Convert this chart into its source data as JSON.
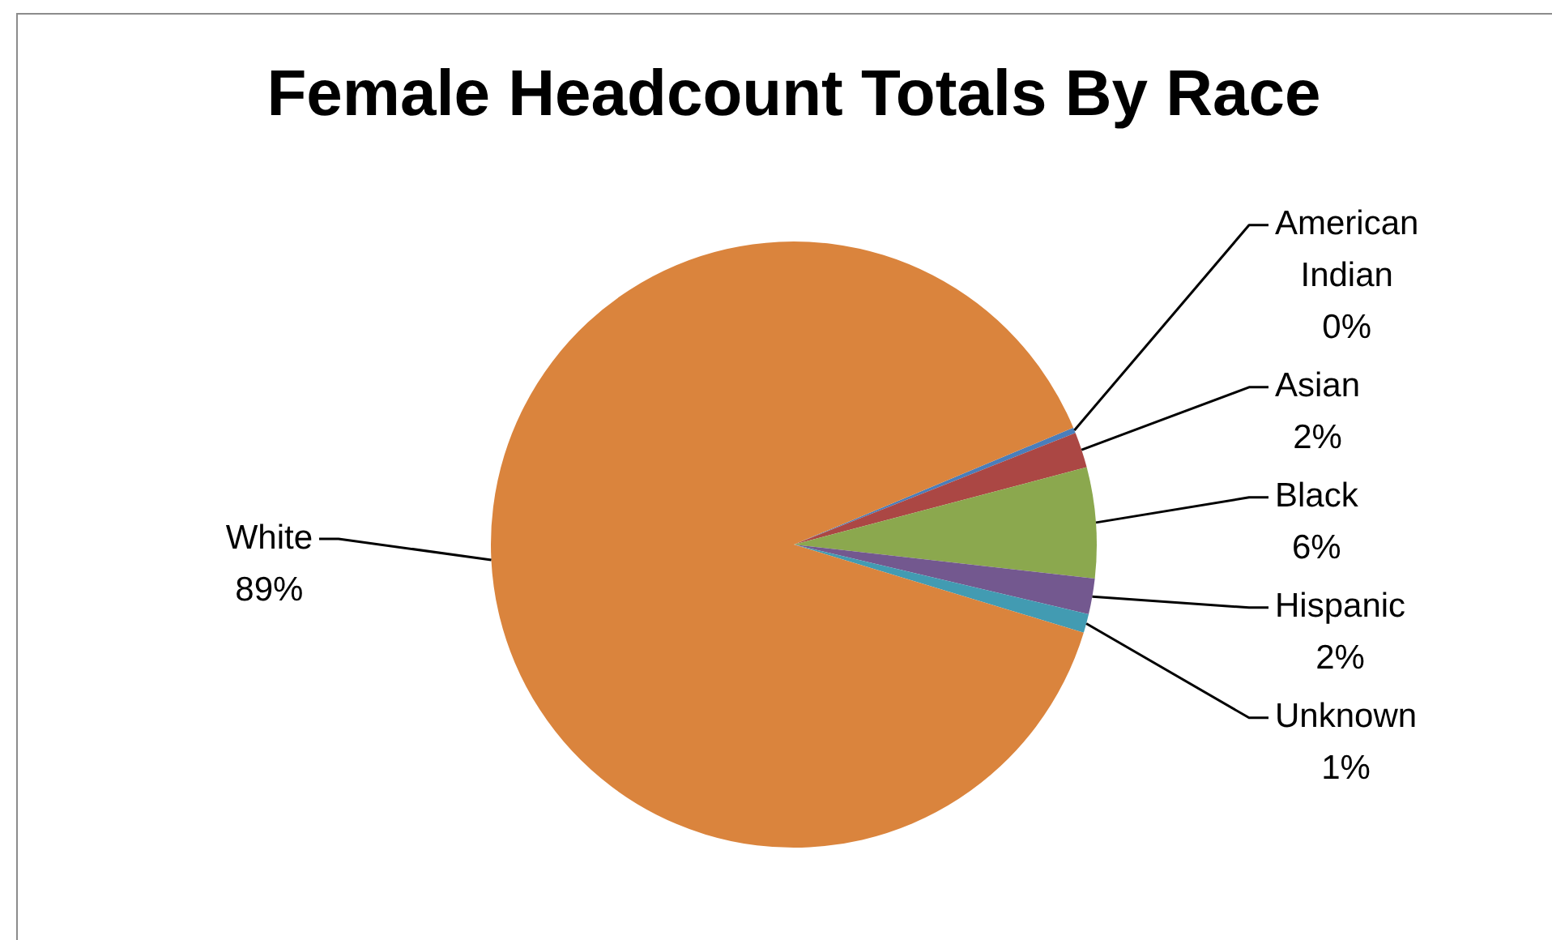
{
  "chart_data": {
    "type": "pie",
    "title": "Female Headcount Totals By Race",
    "categories": [
      "American Indian",
      "Asian",
      "Black",
      "Hispanic",
      "Unknown",
      "White"
    ],
    "values": [
      0.3,
      1.9,
      5.9,
      1.9,
      1,
      89
    ],
    "colors": [
      "#4a7ebb",
      "#ab4744",
      "#8ba84e",
      "#73588f",
      "#429bb2",
      "#da843d"
    ],
    "value_labels": [
      "0%",
      "2%",
      "6%",
      "2%",
      "1%",
      "89%"
    ],
    "legend": false
  }
}
